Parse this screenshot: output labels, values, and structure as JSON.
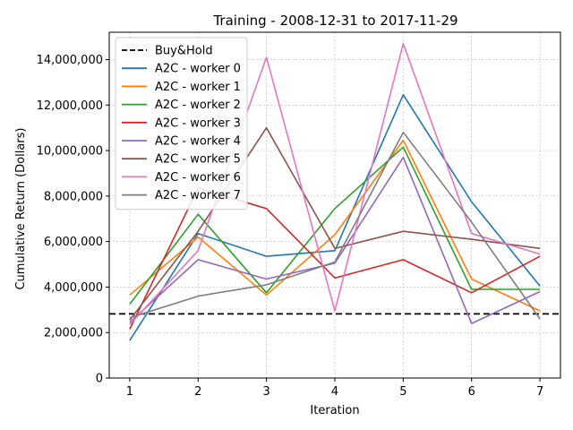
{
  "chart_data": {
    "type": "line",
    "title": "Training - 2008-12-31 to 2017-11-29",
    "xlabel": "Iteration",
    "ylabel": "Cumulative Return (Dollars)",
    "x": [
      1,
      2,
      3,
      4,
      5,
      6,
      7
    ],
    "xticks": [
      "1",
      "2",
      "3",
      "4",
      "5",
      "6",
      "7"
    ],
    "xlim": [
      0.7,
      7.3
    ],
    "ylim": [
      0,
      15200000
    ],
    "yticks": [
      0,
      2000000,
      4000000,
      6000000,
      8000000,
      10000000,
      12000000,
      14000000
    ],
    "ytick_labels": [
      "0",
      "2,000,000",
      "4,000,000",
      "6,000,000",
      "8,000,000",
      "10,000,000",
      "12,000,000",
      "14,000,000"
    ],
    "grid": true,
    "legend_position": "top-left",
    "baseline": {
      "name": "Buy&Hold",
      "value": 2820000,
      "color": "#000000",
      "style": "dashed"
    },
    "series": [
      {
        "name": "A2C - worker 0",
        "color": "#1f77b4",
        "values": [
          1650000,
          6350000,
          5350000,
          5600000,
          12450000,
          7750000,
          4050000
        ]
      },
      {
        "name": "A2C - worker 1",
        "color": "#ff7f0e",
        "values": [
          3650000,
          6200000,
          3650000,
          6300000,
          10450000,
          4350000,
          2950000
        ]
      },
      {
        "name": "A2C - worker 2",
        "color": "#2ca02c",
        "values": [
          3250000,
          7200000,
          3750000,
          7450000,
          10150000,
          3900000,
          3900000
        ]
      },
      {
        "name": "A2C - worker 3",
        "color": "#d62728",
        "values": [
          2150000,
          8350000,
          7450000,
          4400000,
          5200000,
          3750000,
          5350000
        ]
      },
      {
        "name": "A2C - worker 4",
        "color": "#9467bd",
        "values": [
          2450000,
          5200000,
          4350000,
          5050000,
          9700000,
          2400000,
          3800000
        ]
      },
      {
        "name": "A2C - worker 5",
        "color": "#8c564b",
        "values": [
          2550000,
          6450000,
          11000000,
          5700000,
          6450000,
          6100000,
          5700000
        ]
      },
      {
        "name": "A2C - worker 6",
        "color": "#e377c2",
        "values": [
          2350000,
          5600000,
          14100000,
          2950000,
          14700000,
          6350000,
          5450000
        ]
      },
      {
        "name": "A2C - worker 7",
        "color": "#7f7f7f",
        "values": [
          2650000,
          3600000,
          4100000,
          5100000,
          10800000,
          6850000,
          2600000
        ]
      }
    ]
  }
}
